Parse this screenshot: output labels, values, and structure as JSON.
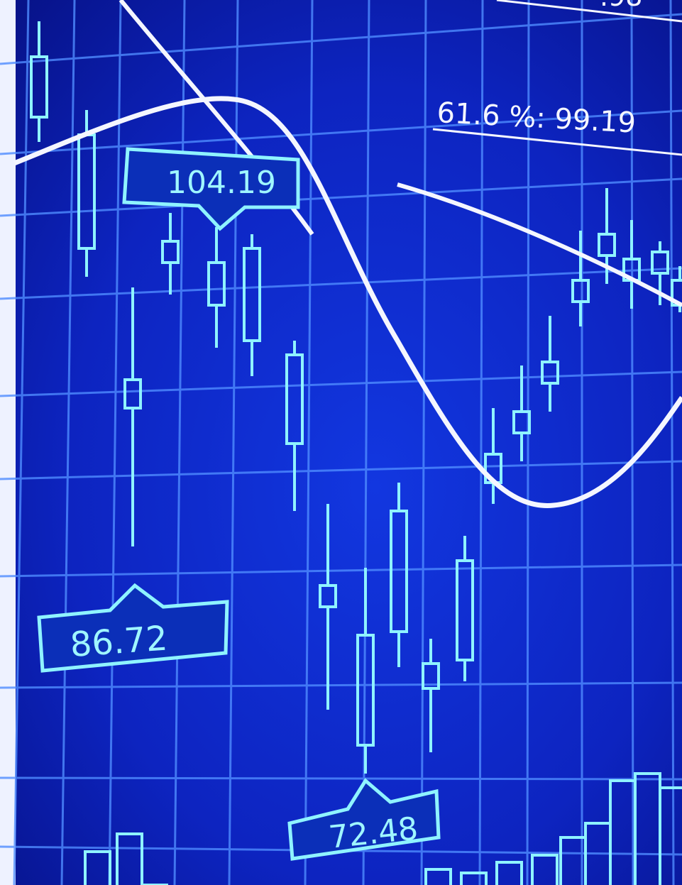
{
  "labels": {
    "top": ".98",
    "fib": "61.6 %: 99.19",
    "high": "104.19",
    "mid": "86.72",
    "low": "72.48"
  }
}
